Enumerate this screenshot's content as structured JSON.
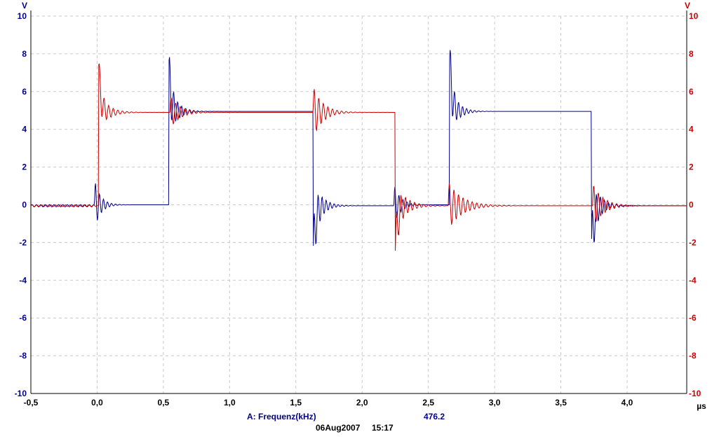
{
  "colors": {
    "channel_a": "#00008b",
    "channel_b": "#cc0000",
    "grid": "#c8c8c8",
    "axis": "#000000"
  },
  "chart_data": {
    "type": "line",
    "x_unit": "µs",
    "left_axis_unit": "V",
    "right_axis_unit": "V",
    "xlim": [
      -0.5,
      4.45
    ],
    "ylim": [
      -10,
      10
    ],
    "x_ticks": [
      "-0,5",
      "0,0",
      "0,5",
      "1,0",
      "1,5",
      "2,0",
      "2,5",
      "3,0",
      "3,5",
      "4,0"
    ],
    "x_tick_values": [
      -0.5,
      0.0,
      0.5,
      1.0,
      1.5,
      2.0,
      2.5,
      3.0,
      3.5,
      4.0
    ],
    "y_ticks_left": [
      "10",
      "8",
      "6",
      "4",
      "2",
      "0",
      "-2",
      "-4",
      "-6",
      "-8",
      "-10"
    ],
    "y_ticks_right": [
      "10",
      "8",
      "6",
      "4",
      "2",
      "0",
      "-2",
      "-4",
      "-6",
      "-8",
      "-10"
    ],
    "y_tick_values": [
      10,
      8,
      6,
      4,
      2,
      0,
      -2,
      -4,
      -6,
      -8,
      -10
    ],
    "grid": true,
    "series": [
      {
        "id": "channel-a",
        "color": "#00008b",
        "segments": [
          {
            "t0": -0.5,
            "level": -0.05,
            "overshoot": 0,
            "ring_amp": 0.12,
            "ring_freq": 30,
            "ring_decay": 0
          },
          {
            "t0": -0.02,
            "level": 0.0,
            "overshoot": 0,
            "ring_amp": 1.35,
            "ring_freq": 33,
            "ring_decay": 22
          },
          {
            "t0": 0.54,
            "level": 4.95,
            "overshoot": 2.2,
            "ring_amp": 1.6,
            "ring_freq": 33,
            "ring_decay": 18
          },
          {
            "t0": 1.63,
            "level": -0.05,
            "overshoot": -3.2,
            "ring_amp": 1.8,
            "ring_freq": 33,
            "ring_decay": 18
          },
          {
            "t0": 2.24,
            "level": 0.0,
            "overshoot": 0,
            "ring_amp": 1.1,
            "ring_freq": 33,
            "ring_decay": 20
          },
          {
            "t0": 2.66,
            "level": 4.95,
            "overshoot": 2.8,
            "ring_amp": 1.5,
            "ring_freq": 33,
            "ring_decay": 18
          },
          {
            "t0": 3.73,
            "level": -0.05,
            "overshoot": -2.9,
            "ring_amp": 1.8,
            "ring_freq": 33,
            "ring_decay": 18
          },
          {
            "t0": 4.45,
            "level": -0.05,
            "overshoot": 0,
            "ring_amp": 0,
            "ring_freq": 33,
            "ring_decay": 20
          }
        ]
      },
      {
        "id": "channel-b",
        "color": "#cc0000",
        "segments": [
          {
            "t0": -0.5,
            "level": -0.05,
            "overshoot": 0,
            "ring_amp": 0.08,
            "ring_freq": 28,
            "ring_decay": 0
          },
          {
            "t0": 0.01,
            "level": 4.9,
            "overshoot": 2.4,
            "ring_amp": 1.1,
            "ring_freq": 29,
            "ring_decay": 15
          },
          {
            "t0": 0.55,
            "level": 4.9,
            "overshoot": 0,
            "ring_amp": 0.9,
            "ring_freq": 29,
            "ring_decay": 14
          },
          {
            "t0": 1.63,
            "level": 4.9,
            "overshoot": 0,
            "ring_amp": 1.4,
            "ring_freq": 29,
            "ring_decay": 14
          },
          {
            "t0": 2.25,
            "level": -0.05,
            "overshoot": -2.7,
            "ring_amp": 1.4,
            "ring_freq": 29,
            "ring_decay": 14
          },
          {
            "t0": 2.65,
            "level": -0.05,
            "overshoot": 0,
            "ring_amp": 1.3,
            "ring_freq": 29,
            "ring_decay": 10
          },
          {
            "t0": 3.74,
            "level": -0.05,
            "overshoot": 0,
            "ring_amp": 1.2,
            "ring_freq": 29,
            "ring_decay": 13
          },
          {
            "t0": 4.45,
            "level": -0.05,
            "overshoot": 0,
            "ring_amp": 0,
            "ring_freq": 29,
            "ring_decay": 14
          }
        ]
      }
    ]
  },
  "footer": {
    "measurement_label": "A: Frequenz(kHz)",
    "measurement_value": "476.2",
    "date": "06Aug2007",
    "time": "15:17"
  }
}
